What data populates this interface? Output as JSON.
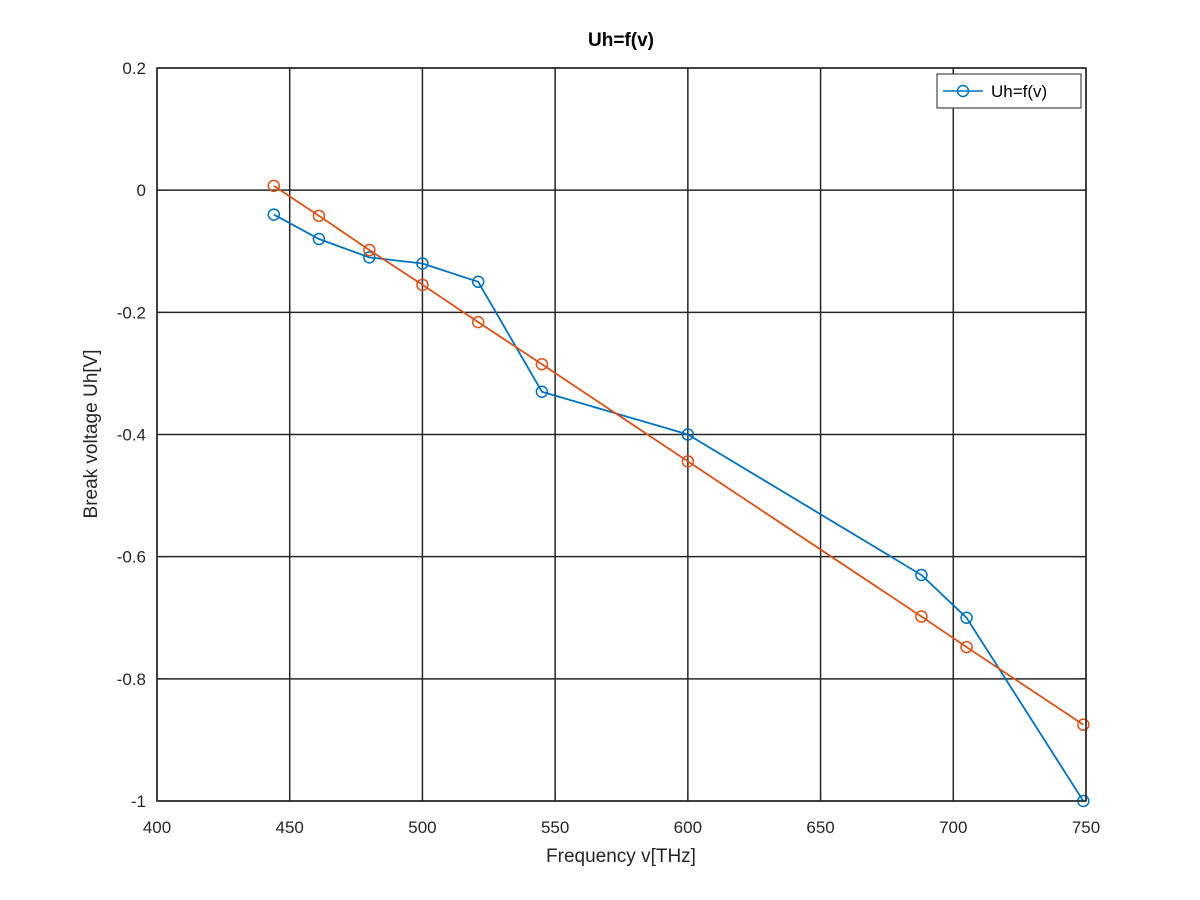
{
  "chart_data": {
    "type": "line",
    "title": "Uh=f(v)",
    "xlabel": "Frequency v[THz]",
    "ylabel": "Break voltage Uh[V]",
    "xlim": [
      400,
      750
    ],
    "ylim": [
      -1,
      0.2
    ],
    "xticks": [
      400,
      450,
      500,
      550,
      600,
      650,
      700,
      750
    ],
    "yticks": [
      -1,
      -0.8,
      -0.6,
      -0.4,
      -0.2,
      0,
      0.2
    ],
    "xtick_labels": [
      "400",
      "450",
      "500",
      "550",
      "600",
      "650",
      "700",
      "750"
    ],
    "ytick_labels": [
      "-1",
      "-0.8",
      "-0.6",
      "-0.4",
      "-0.2",
      "0",
      "0.2"
    ],
    "grid": true,
    "legend_position": "top-right",
    "series": [
      {
        "name": "Uh=f(v)",
        "color": "#0072BD",
        "marker": "circle",
        "x": [
          444,
          461,
          480,
          500,
          521,
          545,
          600,
          688,
          705,
          749
        ],
        "y": [
          -0.04,
          -0.08,
          -0.11,
          -0.12,
          -0.15,
          -0.33,
          -0.4,
          -0.63,
          -0.7,
          -1.0
        ]
      },
      {
        "color": "#D95319",
        "marker": "circle",
        "x": [
          444,
          461,
          480,
          500,
          521,
          545,
          600,
          688,
          705,
          749
        ],
        "y": [
          0.007,
          -0.042,
          -0.098,
          -0.155,
          -0.216,
          -0.285,
          -0.444,
          -0.698,
          -0.748,
          -0.875
        ]
      }
    ]
  }
}
